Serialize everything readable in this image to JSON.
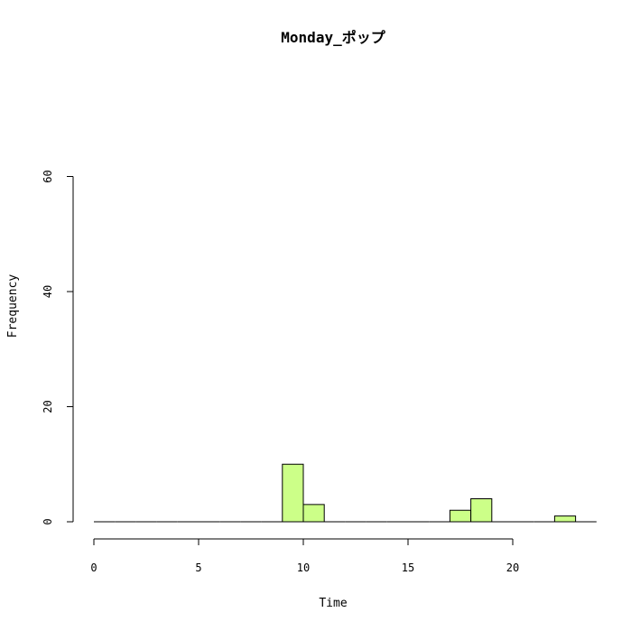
{
  "chart_data": {
    "type": "bar",
    "title": "Monday_ポップ",
    "xlabel": "Time",
    "ylabel": "Frequency",
    "bin_width": 1,
    "xlim": [
      0,
      24
    ],
    "ylim": [
      0,
      60
    ],
    "x_ticks": [
      0,
      5,
      10,
      15,
      20
    ],
    "y_ticks": [
      0,
      20,
      40,
      60
    ],
    "bins": [
      {
        "start": 0,
        "end": 1,
        "count": 0
      },
      {
        "start": 1,
        "end": 2,
        "count": 0
      },
      {
        "start": 2,
        "end": 3,
        "count": 0
      },
      {
        "start": 3,
        "end": 4,
        "count": 0
      },
      {
        "start": 4,
        "end": 5,
        "count": 0
      },
      {
        "start": 5,
        "end": 6,
        "count": 0
      },
      {
        "start": 6,
        "end": 7,
        "count": 0
      },
      {
        "start": 7,
        "end": 8,
        "count": 0
      },
      {
        "start": 8,
        "end": 9,
        "count": 0
      },
      {
        "start": 9,
        "end": 10,
        "count": 10
      },
      {
        "start": 10,
        "end": 11,
        "count": 3
      },
      {
        "start": 11,
        "end": 12,
        "count": 0
      },
      {
        "start": 12,
        "end": 13,
        "count": 0
      },
      {
        "start": 13,
        "end": 14,
        "count": 0
      },
      {
        "start": 14,
        "end": 15,
        "count": 0
      },
      {
        "start": 15,
        "end": 16,
        "count": 0
      },
      {
        "start": 16,
        "end": 17,
        "count": 0
      },
      {
        "start": 17,
        "end": 18,
        "count": 2
      },
      {
        "start": 18,
        "end": 19,
        "count": 4
      },
      {
        "start": 19,
        "end": 20,
        "count": 0
      },
      {
        "start": 20,
        "end": 21,
        "count": 0
      },
      {
        "start": 21,
        "end": 22,
        "count": 0
      },
      {
        "start": 22,
        "end": 23,
        "count": 1
      },
      {
        "start": 23,
        "end": 24,
        "count": 0
      }
    ],
    "bar_color": "#ccff88",
    "border_color": "#000000",
    "grid": false,
    "legend": "none"
  }
}
